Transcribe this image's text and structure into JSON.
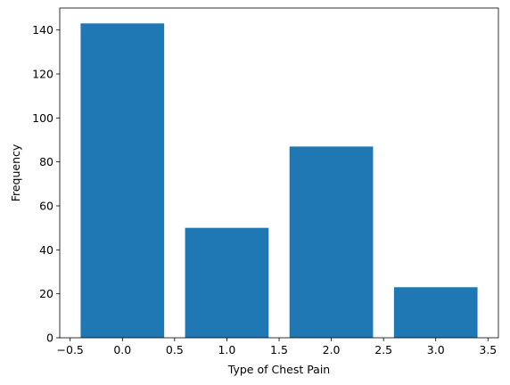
{
  "chart_data": {
    "type": "bar",
    "x": [
      0,
      1,
      2,
      3
    ],
    "values": [
      143,
      50,
      87,
      23
    ],
    "bar_color": "#1f77b4",
    "xlabel": "Type of Chest Pain",
    "ylabel": "Frequency",
    "xlim": [
      -0.6,
      3.6
    ],
    "ylim": [
      0,
      150
    ],
    "xticks": [
      -0.5,
      0.0,
      0.5,
      1.0,
      1.5,
      2.0,
      2.5,
      3.0,
      3.5
    ],
    "xtick_labels": [
      "−0.5",
      "0.0",
      "0.5",
      "1.0",
      "1.5",
      "2.0",
      "2.5",
      "3.0",
      "3.5"
    ],
    "yticks": [
      0,
      20,
      40,
      60,
      80,
      100,
      120,
      140
    ],
    "ytick_labels": [
      "0",
      "20",
      "40",
      "60",
      "80",
      "100",
      "120",
      "140"
    ],
    "grid": false,
    "legend": false
  }
}
